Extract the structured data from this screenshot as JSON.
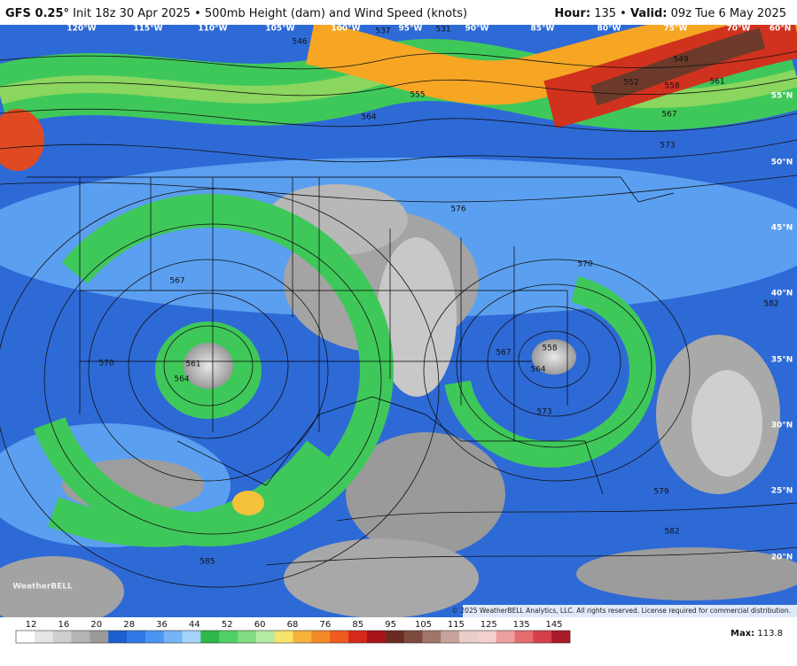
{
  "header": {
    "model": "GFS 0.25°",
    "init": "Init 18z 30 Apr 2025",
    "bullet": "•",
    "product": "500mb Height (dam) and Wind Speed (knots)",
    "hour_label": "Hour:",
    "hour": "135",
    "bullet2": "•",
    "valid_label": "Valid:",
    "valid": "09z Tue 6 May 2025"
  },
  "map": {
    "longitudes": [
      "120°W",
      "115°W",
      "110°W",
      "105°W",
      "100°W",
      "95°W",
      "90°W",
      "85°W",
      "80°W",
      "75°W",
      "70°W",
      "60°N"
    ],
    "latitudes": [
      "55°N",
      "50°N",
      "45°N",
      "40°N",
      "35°N",
      "30°N",
      "25°N",
      "20°N"
    ],
    "contour_labels": [
      "546",
      "537",
      "531",
      "555",
      "564",
      "549",
      "552",
      "558",
      "561",
      "567",
      "573",
      "576",
      "567",
      "561",
      "564",
      "570",
      "570",
      "567",
      "558",
      "564",
      "573",
      "585",
      "579",
      "582",
      "582"
    ],
    "logo": "WeatherBELL",
    "copyright": "© 2025 WeatherBELL Analytics, LLC. All rights reserved. License required for commercial distribution."
  },
  "legend": {
    "ticks": [
      12,
      16,
      20,
      28,
      36,
      44,
      52,
      60,
      68,
      76,
      85,
      95,
      105,
      115,
      125,
      135,
      145
    ],
    "max_label": "Max:",
    "max": "113.8"
  }
}
